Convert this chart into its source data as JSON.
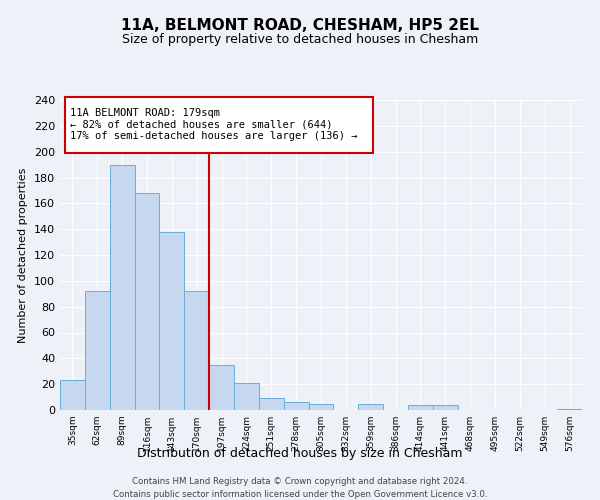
{
  "title": "11A, BELMONT ROAD, CHESHAM, HP5 2EL",
  "subtitle": "Size of property relative to detached houses in Chesham",
  "xlabel": "Distribution of detached houses by size in Chesham",
  "ylabel": "Number of detached properties",
  "bar_labels": [
    "35sqm",
    "62sqm",
    "89sqm",
    "116sqm",
    "143sqm",
    "170sqm",
    "197sqm",
    "224sqm",
    "251sqm",
    "278sqm",
    "305sqm",
    "332sqm",
    "359sqm",
    "386sqm",
    "414sqm",
    "441sqm",
    "468sqm",
    "495sqm",
    "522sqm",
    "549sqm",
    "576sqm"
  ],
  "bar_values": [
    23,
    92,
    190,
    168,
    138,
    92,
    35,
    21,
    9,
    6,
    5,
    0,
    5,
    0,
    4,
    4,
    0,
    0,
    0,
    0,
    1
  ],
  "bar_color": "#c5d8ef",
  "bar_edge_color": "#6aaed6",
  "property_line_x": 5.5,
  "annotation_text_line1": "11A BELMONT ROAD: 179sqm",
  "annotation_text_line2": "← 82% of detached houses are smaller (644)",
  "annotation_text_line3": "17% of semi-detached houses are larger (136) →",
  "annotation_box_color": "#ffffff",
  "annotation_box_edge": "#cc0000",
  "property_line_color": "#cc0000",
  "ylim": [
    0,
    240
  ],
  "yticks": [
    0,
    20,
    40,
    60,
    80,
    100,
    120,
    140,
    160,
    180,
    200,
    220,
    240
  ],
  "footer_line1": "Contains HM Land Registry data © Crown copyright and database right 2024.",
  "footer_line2": "Contains public sector information licensed under the Open Government Licence v3.0.",
  "background_color": "#eef2f8",
  "grid_color": "#ffffff"
}
